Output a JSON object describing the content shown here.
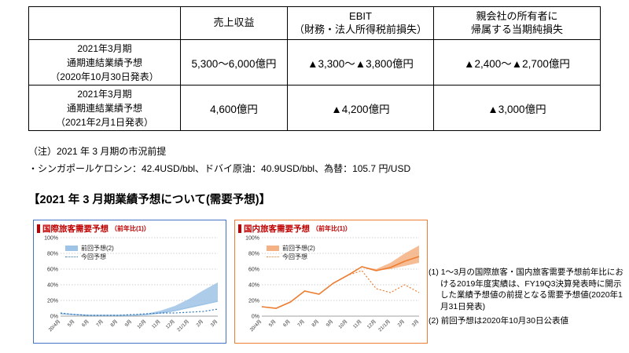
{
  "table": {
    "headers": [
      "",
      "売上収益",
      "EBIT\n（財務・法人所得税前損失）",
      "親会社の所有者に\n帰属する当期純損失"
    ],
    "rows": [
      {
        "label": "2021年3月期\n通期連結業績予想\n（2020年10月30日発表）",
        "values": [
          "5,300～6,000億円",
          "▲3,300～▲3,800億円",
          "▲2,400～▲2,700億円"
        ]
      },
      {
        "label": "2021年3月期\n通期連結業績予想\n（2021年2月1日発表）",
        "values": [
          "4,600億円",
          "▲4,200億円",
          "▲3,000億円"
        ]
      }
    ]
  },
  "notes": {
    "line1": "（注）2021 年 3 月期の市況前提",
    "line2": "・シンガポールケロシン：42.4USD/bbl、ドバイ原油：40.9USD/bbl、為替：105.7 円/USD"
  },
  "section_title": "【2021 年 3 月期業績予想について(需要予想)】",
  "side_notes": [
    "(1) 1～3月の国際旅客・国内旅客需要予想前年比における2019年度実績は、FY19Q3決算発表時に開示した業績予想値の前提となる需要予想値(2020年1月31日発表)",
    "(2) 前回予想は2020年10月30日公表値"
  ],
  "chart_data": [
    {
      "type": "area",
      "title": "国際旅客需要予想",
      "title_suffix": "（前年比(1)）",
      "title_color": "#c00000",
      "border_color": "#4472c4",
      "band_color": "#9dc3e6",
      "line_color": "#2e75b6",
      "x": [
        "20/4月",
        "5月",
        "6月",
        "7月",
        "8月",
        "9月",
        "10月",
        "11月",
        "12月",
        "21/1月",
        "2月",
        "3月"
      ],
      "ylim": [
        0,
        100
      ],
      "yticks": [
        "0%",
        "20%",
        "40%",
        "60%",
        "80%",
        "100%"
      ],
      "legend": [
        "前回予想(2)",
        "今回予想"
      ],
      "series": [
        {
          "name": "前回予想(2)",
          "type": "band",
          "color": "#9dc3e6",
          "low": [
            3,
            2,
            1,
            1,
            1,
            1,
            2,
            4,
            7,
            11,
            15,
            19
          ],
          "high": [
            3,
            2,
            1,
            1,
            1,
            1,
            3,
            7,
            13,
            22,
            33,
            43
          ]
        },
        {
          "name": "前回予想(2)",
          "type": "line",
          "color": "#9dc3e6",
          "values": [
            3,
            2,
            1,
            1,
            1,
            1,
            2,
            4,
            7,
            11,
            15,
            19
          ]
        },
        {
          "name": "今回予想",
          "type": "dotted",
          "color": "#2e75b6",
          "values": [
            4,
            2,
            1,
            1,
            1,
            2,
            3,
            4,
            4,
            5,
            6,
            9
          ]
        }
      ]
    },
    {
      "type": "area",
      "title": "国内旅客需要予想",
      "title_suffix": "（前年比(1)）",
      "title_color": "#c00000",
      "border_color": "#ed7d31",
      "band_color": "#f4b183",
      "line_color": "#ed7d31",
      "x": [
        "20/4月",
        "5月",
        "6月",
        "7月",
        "8月",
        "9月",
        "10月",
        "11月",
        "12月",
        "21/1月",
        "2月",
        "3月"
      ],
      "ylim": [
        0,
        100
      ],
      "yticks": [
        "0%",
        "20%",
        "40%",
        "60%",
        "80%",
        "100%"
      ],
      "legend": [
        "前回予想(2)",
        "今回予想"
      ],
      "series": [
        {
          "name": "前回予想(2)",
          "type": "band",
          "color": "#f4b183",
          "low": [
            12,
            10,
            18,
            32,
            28,
            42,
            52,
            63,
            58,
            60,
            64,
            68
          ],
          "high": [
            12,
            10,
            18,
            32,
            28,
            42,
            52,
            63,
            60,
            68,
            80,
            90
          ]
        },
        {
          "name": "前回予想(2)",
          "type": "line",
          "color": "#ed7d31",
          "values": [
            12,
            10,
            18,
            32,
            28,
            42,
            52,
            63,
            58,
            62,
            70,
            76
          ]
        },
        {
          "name": "今回予想",
          "type": "dotted",
          "color": "#ed7d31",
          "values": [
            12,
            10,
            18,
            32,
            28,
            42,
            52,
            58,
            35,
            30,
            40,
            30
          ]
        }
      ]
    }
  ]
}
